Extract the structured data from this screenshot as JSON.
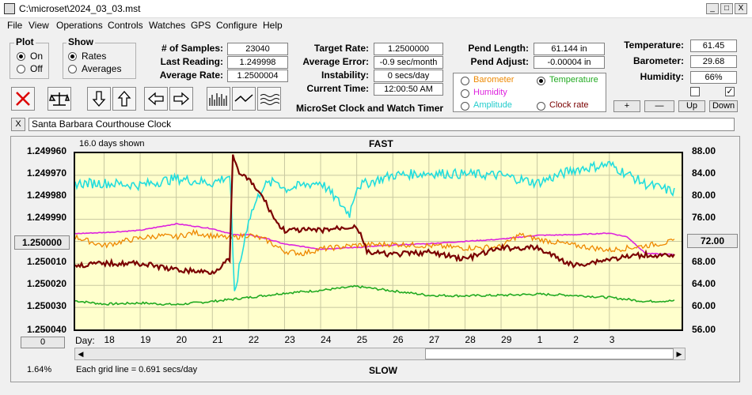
{
  "window": {
    "title": "C:\\microset\\2024_03_03.mst",
    "min": "_",
    "max": "□",
    "close": "X"
  },
  "menu": [
    "File",
    "View",
    "Operations",
    "Controls",
    "Watches",
    "GPS",
    "Configure",
    "Help"
  ],
  "plot": {
    "title": "Plot",
    "on": "On",
    "off": "Off"
  },
  "show": {
    "title": "Show",
    "rates": "Rates",
    "averages": "Averages"
  },
  "stats1": {
    "samples_label": "# of Samples:",
    "samples": "23040",
    "last_label": "Last Reading:",
    "last": "1.249998",
    "avg_label": "Average Rate:",
    "avg": "1.2500004"
  },
  "stats2": {
    "target_label": "Target Rate:",
    "target": "1.2500000",
    "err_label": "Average Error:",
    "err": "-0.9 sec/month",
    "inst_label": "Instability:",
    "inst": "0 secs/day",
    "time_label": "Current Time:",
    "time": "12:00:50 AM"
  },
  "pend": {
    "len_label": "Pend Length:",
    "len": "61.144 in",
    "adj_label": "Pend Adjust:",
    "adj": "-0.00004 in"
  },
  "env": {
    "temp_label": "Temperature:",
    "temp": "61.45",
    "baro_label": "Barometer:",
    "baro": "29.68",
    "hum_label": "Humidity:",
    "hum": "66%"
  },
  "series_sel": {
    "barometer": "Barometer",
    "temperature": "Temperature",
    "humidity": "Humidity",
    "amplitude": "Amplitude",
    "clock_rate": "Clock rate"
  },
  "app_label": "MicroSet Clock and Watch Timer",
  "small_btns": {
    "plus": "+",
    "minus": "—",
    "up": "Up",
    "down": "Down"
  },
  "clock_name": "Santa Barbara Courthouse Clock",
  "clock_close": "X",
  "graph": {
    "days_shown": "16.0 days shown",
    "fast": "FAST",
    "slow": "SLOW",
    "grid_note": "Each grid line = 0.691 secs/day",
    "percent": "1.64%",
    "zero_btn": "0",
    "center_btn_left": "1.250000",
    "center_btn_right": "72.00",
    "day_label": "Day:"
  },
  "colors": {
    "bg": "#ffffcc",
    "temperature": "#22aa22",
    "humidity": "#dd22dd",
    "barometer": "#ee8800",
    "amplitude": "#22dddd",
    "rate": "#7a0000"
  },
  "chart_data": {
    "type": "line",
    "title": "",
    "x_label": "Day:",
    "x_ticks": [
      "18",
      "19",
      "20",
      "21",
      "22",
      "23",
      "24",
      "25",
      "26",
      "27",
      "28",
      "29",
      "1",
      "2",
      "3"
    ],
    "y_left_ticks": [
      "1.249960",
      "1.249970",
      "1.249980",
      "1.249990",
      "1.250000",
      "1.250010",
      "1.250020",
      "1.250030",
      "1.250040"
    ],
    "y_right_ticks": [
      "88.00",
      "84.00",
      "80.00",
      "76.00",
      "72.00",
      "68.00",
      "64.00",
      "60.00",
      "56.00"
    ],
    "y_left_range": [
      1.24996,
      1.25004
    ],
    "y_right_range": [
      56,
      88
    ],
    "x_range": [
      17.2,
      34.0
    ],
    "series": [
      {
        "name": "Temperature",
        "color": "#22aa22",
        "axis": "right",
        "x": [
          17.2,
          18,
          19,
          20,
          21,
          21.6,
          22,
          23,
          24,
          25,
          26,
          27,
          28,
          29,
          30,
          31,
          32,
          33,
          33.8
        ],
        "y": [
          61.2,
          60.6,
          60.8,
          60.5,
          61.1,
          61.5,
          61.8,
          62.6,
          63.1,
          63.8,
          63.0,
          62.2,
          62.1,
          62.2,
          62.4,
          62.2,
          61.8,
          61.1,
          61.2
        ]
      },
      {
        "name": "Humidity",
        "color": "#dd22dd",
        "axis": "right",
        "x": [
          17.2,
          18,
          19,
          20,
          21,
          21.6,
          22,
          22.5,
          23,
          24,
          25,
          26,
          27,
          28,
          29,
          30,
          31,
          32,
          32.5,
          33,
          33.8
        ],
        "y": [
          73.4,
          73.6,
          74.0,
          75.2,
          74.3,
          73.2,
          73.2,
          72.5,
          71.5,
          70.6,
          70.9,
          71.3,
          71.6,
          72.0,
          72.4,
          73.1,
          73.2,
          73.5,
          72.8,
          69.8,
          69.6
        ]
      },
      {
        "name": "Barometer",
        "color": "#ee8800",
        "axis": "right",
        "x": [
          17.2,
          18,
          18.5,
          19,
          19.5,
          20,
          20.5,
          21,
          21.5,
          22,
          22.5,
          23,
          23.5,
          24,
          25,
          26,
          27,
          28,
          29,
          29.5,
          30,
          31,
          32,
          33,
          33.8
        ],
        "y": [
          72.8,
          71.2,
          72.0,
          72.6,
          73.0,
          72.8,
          73.6,
          73.0,
          72.6,
          73.2,
          72.2,
          70.2,
          69.8,
          70.6,
          71.3,
          71.5,
          71.2,
          70.8,
          71.0,
          73.2,
          72.4,
          71.3,
          70.4,
          71.2,
          72.0
        ]
      },
      {
        "name": "Amplitude",
        "color": "#22dddd",
        "axis": "right",
        "x": [
          17.2,
          18,
          19,
          20,
          21,
          21.5,
          21.6,
          22,
          22.4,
          22.8,
          23,
          24,
          24.8,
          25,
          26,
          27,
          28,
          29,
          30,
          31,
          32,
          33,
          33.8
        ],
        "y": [
          82.5,
          82.6,
          82.2,
          83.4,
          82.6,
          84.0,
          62.0,
          76.0,
          82.0,
          83.0,
          81.5,
          82.8,
          77.0,
          82.0,
          84.0,
          84.4,
          84.2,
          84.0,
          82.6,
          85.0,
          86.0,
          82.4,
          81.0
        ]
      },
      {
        "name": "Clock rate",
        "color": "#7a0000",
        "axis": "left",
        "x": [
          17.2,
          18,
          19,
          20,
          21,
          21.5,
          21.55,
          21.7,
          22,
          22.4,
          22.8,
          23,
          24,
          25,
          25.3,
          26,
          27,
          28,
          29,
          30,
          31,
          32,
          33,
          33.8
        ],
        "y": [
          1.250011,
          1.25001,
          1.25001,
          1.250013,
          1.250014,
          1.250008,
          1.24996,
          1.249968,
          1.249972,
          1.24998,
          1.249992,
          1.249995,
          1.249995,
          1.249993,
          1.250005,
          1.250006,
          1.250005,
          1.250008,
          1.250003,
          1.250003,
          1.250011,
          1.250008,
          1.250006,
          1.250007
        ]
      }
    ]
  }
}
